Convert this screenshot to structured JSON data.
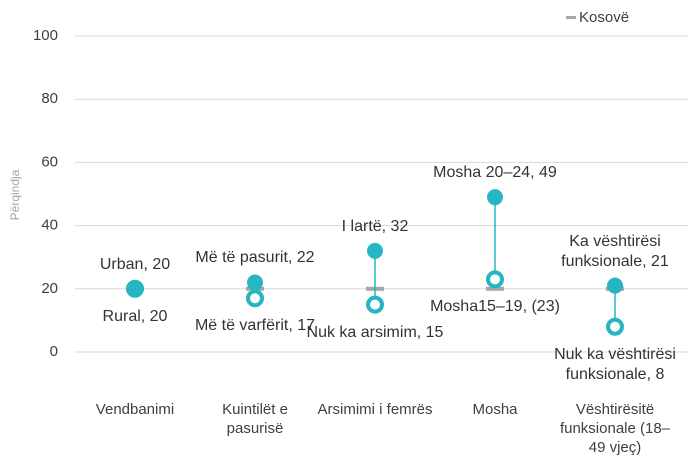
{
  "chart_data": {
    "type": "dot",
    "y_label": "Përqindja",
    "categories": [
      "Vendbanimi",
      "Kuintilët e pasurisë",
      "Arsimimi i femrës",
      "Mosha",
      "Vështirësitë funksionale (18–49 vjeç)"
    ],
    "series": [
      {
        "color": "#26b5c3",
        "marker": "filled",
        "values": [
          20,
          22,
          32,
          49,
          21
        ],
        "value_labels": [
          "Urban, 20",
          "Më të pasurit, 22",
          "I lartë, 32",
          "Mosha 20–24, 49",
          "Ka vështirësi funksionale, 21"
        ]
      },
      {
        "color": "#26b5c3",
        "marker": "open",
        "values": [
          20,
          17,
          15,
          23,
          8
        ],
        "value_labels": [
          "Rural, 20",
          "Më të varfërit, 17",
          "Nuk ka arsimim, 15",
          "Mosha15–19, (23)",
          "Nuk ka vështirësi funksionale, 8"
        ]
      },
      {
        "name": "Kosovë",
        "color": "#a6a6a6",
        "marker": "dash",
        "values": [
          20,
          20,
          20,
          20,
          20
        ]
      }
    ],
    "ylim": [
      0,
      100
    ],
    "yticks": [
      0,
      20,
      40,
      60,
      80,
      100
    ],
    "grid": true,
    "legend": "top-right"
  }
}
